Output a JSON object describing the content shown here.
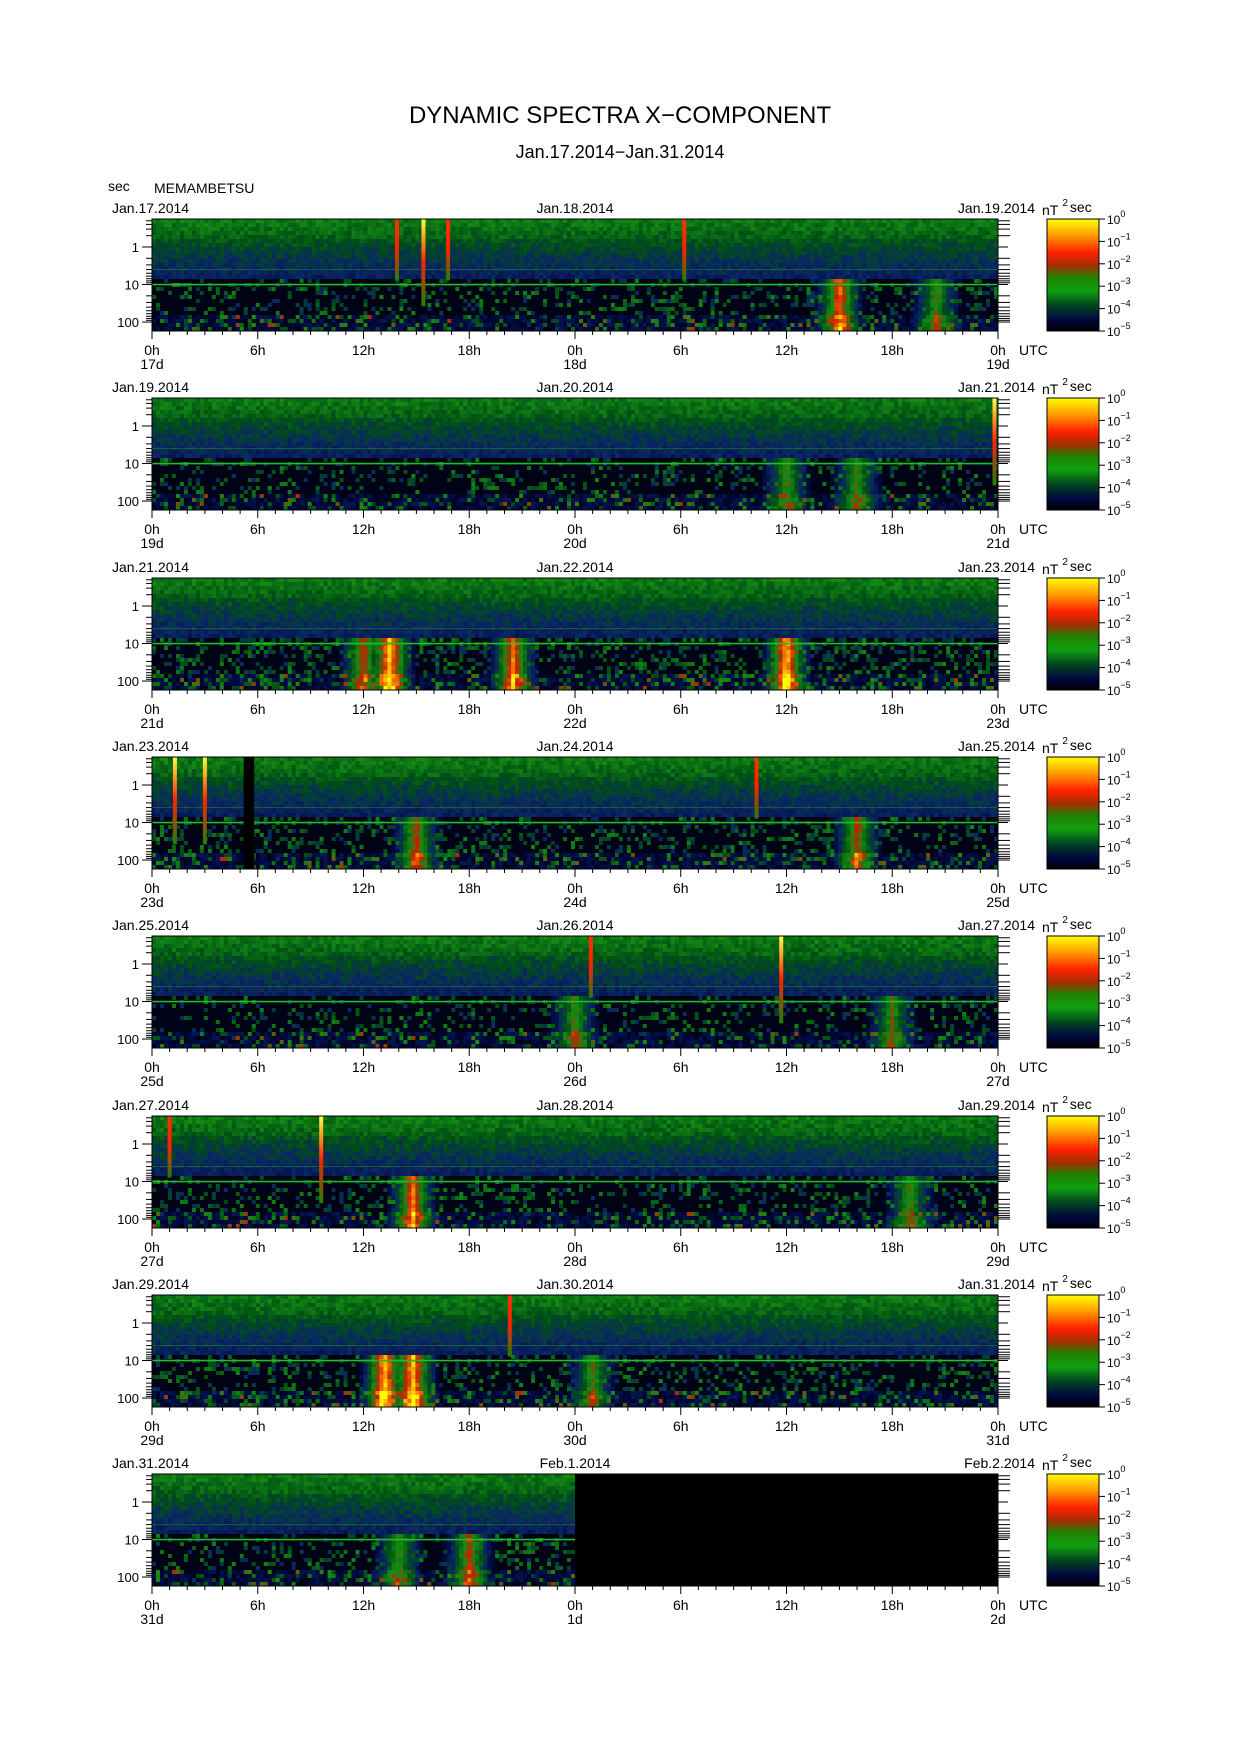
{
  "title": "DYNAMIC SPECTRA X−COMPONENT",
  "subtitle": "Jan.17.2014−Jan.31.2014",
  "station": "MEMAMBETSU",
  "y_unit": "sec",
  "colorbar": {
    "unit_main": "nT",
    "unit_sup": "2",
    "unit_after": "sec",
    "tick_base": "10",
    "tick_exps": [
      "0",
      "−1",
      "−2",
      "−3",
      "−4",
      "−5"
    ]
  },
  "chart_data": {
    "type": "heatmap",
    "description_y": "period",
    "y_ticks": [
      "1",
      "10",
      "100"
    ],
    "x_ticks": [
      "0h",
      "6h",
      "12h",
      "18h",
      "0h",
      "6h",
      "12h",
      "18h",
      "0h"
    ],
    "utc_label": "UTC",
    "panels": [
      {
        "date_left": "Jan.17.2014",
        "date_mid": "Jan.18.2014",
        "date_right": "Jan.19.2014",
        "day_labels": [
          "17d",
          "18d",
          "19d"
        ],
        "spikes": [
          [
            13.9,
            1
          ],
          [
            15.4,
            0
          ],
          [
            16.8,
            1
          ],
          [
            30.2,
            1
          ]
        ],
        "bursts": [
          [
            39,
            0.8
          ],
          [
            44.5,
            0.6
          ]
        ],
        "level": 0.45,
        "no_data": []
      },
      {
        "date_left": "Jan.19.2014",
        "date_mid": "Jan.20.2014",
        "date_right": "Jan.21.2014",
        "day_labels": [
          "19d",
          "20d",
          "21d"
        ],
        "spikes": [
          [
            47.8,
            0
          ]
        ],
        "bursts": [
          [
            36,
            0.6
          ],
          [
            40,
            0.6
          ]
        ],
        "level": 0.4,
        "no_data": []
      },
      {
        "date_left": "Jan.21.2014",
        "date_mid": "Jan.22.2014",
        "date_right": "Jan.23.2014",
        "day_labels": [
          "21d",
          "22d",
          "23d"
        ],
        "spikes": [],
        "bursts": [
          [
            13.5,
            0.9
          ],
          [
            20.5,
            0.8
          ],
          [
            36,
            0.9
          ],
          [
            12,
            0.7
          ]
        ],
        "level": 0.6,
        "no_data": []
      },
      {
        "date_left": "Jan.23.2014",
        "date_mid": "Jan.24.2014",
        "date_right": "Jan.25.2014",
        "day_labels": [
          "23d",
          "24d",
          "25d"
        ],
        "spikes": [
          [
            1.3,
            0
          ],
          [
            3.0,
            0
          ],
          [
            34.3,
            1
          ]
        ],
        "bursts": [
          [
            15,
            0.7
          ],
          [
            40,
            0.7
          ]
        ],
        "level": 0.5,
        "no_data": [
          [
            5.2,
            5.8
          ]
        ]
      },
      {
        "date_left": "Jan.25.2014",
        "date_mid": "Jan.26.2014",
        "date_right": "Jan.27.2014",
        "day_labels": [
          "25d",
          "26d",
          "27d"
        ],
        "spikes": [
          [
            24.9,
            1
          ],
          [
            35.7,
            0
          ]
        ],
        "bursts": [
          [
            24,
            0.6
          ],
          [
            42,
            0.6
          ]
        ],
        "level": 0.4,
        "no_data": []
      },
      {
        "date_left": "Jan.27.2014",
        "date_mid": "Jan.28.2014",
        "date_right": "Jan.29.2014",
        "day_labels": [
          "27d",
          "28d",
          "29d"
        ],
        "spikes": [
          [
            1.0,
            1
          ],
          [
            9.6,
            0
          ]
        ],
        "bursts": [
          [
            14.8,
            0.8
          ],
          [
            43,
            0.6
          ]
        ],
        "level": 0.45,
        "no_data": []
      },
      {
        "date_left": "Jan.29.2014",
        "date_mid": "Jan.30.2014",
        "date_right": "Jan.31.2014",
        "day_labels": [
          "29d",
          "30d",
          "31d"
        ],
        "spikes": [
          [
            20.3,
            1
          ]
        ],
        "bursts": [
          [
            13.2,
            0.9
          ],
          [
            14.8,
            0.9
          ],
          [
            25,
            0.6
          ]
        ],
        "level": 0.5,
        "no_data": []
      },
      {
        "date_left": "Jan.31.2014",
        "date_mid": "Feb.1.2014",
        "date_right": "Feb.2.2014",
        "day_labels": [
          "31d",
          "1d",
          "2d"
        ],
        "spikes": [],
        "bursts": [
          [
            14,
            0.6
          ],
          [
            18,
            0.7
          ]
        ],
        "level": 0.4,
        "no_data": [
          [
            24,
            48
          ]
        ]
      }
    ]
  }
}
